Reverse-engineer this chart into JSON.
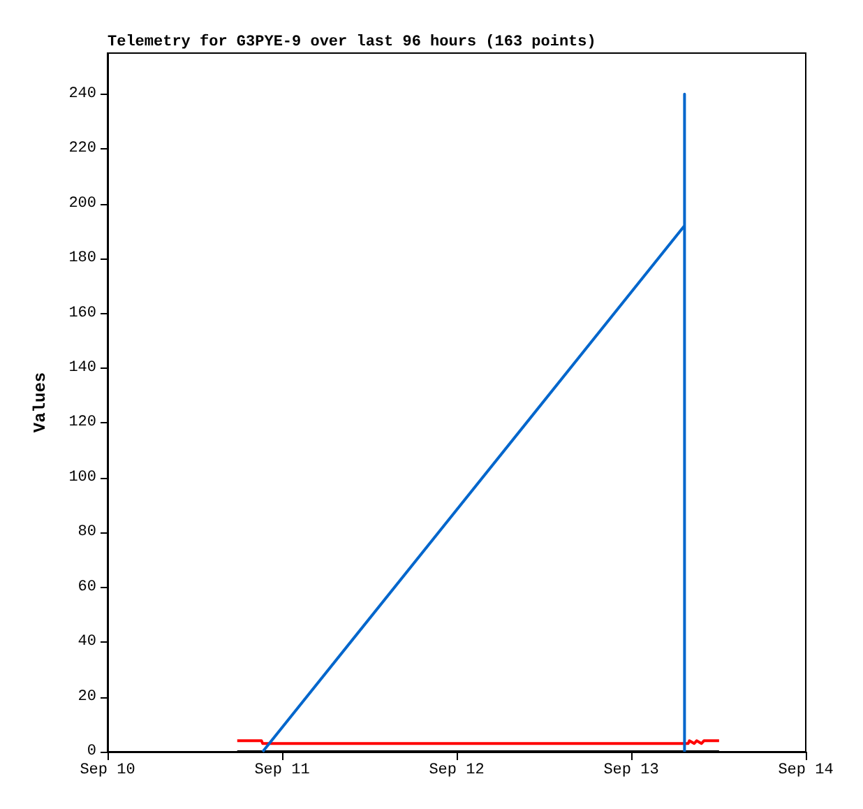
{
  "chart_data": {
    "type": "line",
    "title": "Telemetry for G3PYE-9 over last 96 hours (163 points)",
    "ylabel": "Values",
    "series": [
      {
        "color": "#000000",
        "x": [
          "--09-10T17:50",
          "--09-13T12:05"
        ],
        "values": [
          0,
          0
        ]
      },
      {
        "color": "#ff0000",
        "x": [
          "--09-10T17:50",
          "--09-10T21:10",
          "--09-10T21:20",
          "--09-13T07:50",
          "--09-13T08:00",
          "--09-13T08:40",
          "--09-13T09:00",
          "--09-13T09:40",
          "--09-13T10:00",
          "--09-13T12:05"
        ],
        "values": [
          4,
          4,
          3,
          3,
          4,
          3,
          4,
          3,
          4,
          4
        ]
      },
      {
        "color": "#0066cc",
        "x": [
          "--09-10T21:20",
          "--09-13T07:20",
          "--09-13T07:20",
          "--09-13T07:20"
        ],
        "values": [
          0,
          192,
          240,
          0
        ]
      }
    ],
    "xlim": [
      "--09-10",
      "--09-14"
    ],
    "xticks": [
      {
        "value": "--09-10",
        "label": "Sep 10"
      },
      {
        "value": "--09-11",
        "label": "Sep 11"
      },
      {
        "value": "--09-12",
        "label": "Sep 12"
      },
      {
        "value": "--09-13",
        "label": "Sep 13"
      },
      {
        "value": "--09-14",
        "label": "Sep 14"
      }
    ],
    "ylim": [
      0,
      255
    ],
    "yticks": [
      0,
      20,
      40,
      60,
      80,
      100,
      120,
      140,
      160,
      180,
      200,
      220,
      240
    ],
    "grid": false,
    "marker": "none",
    "line_style": "solid"
  }
}
